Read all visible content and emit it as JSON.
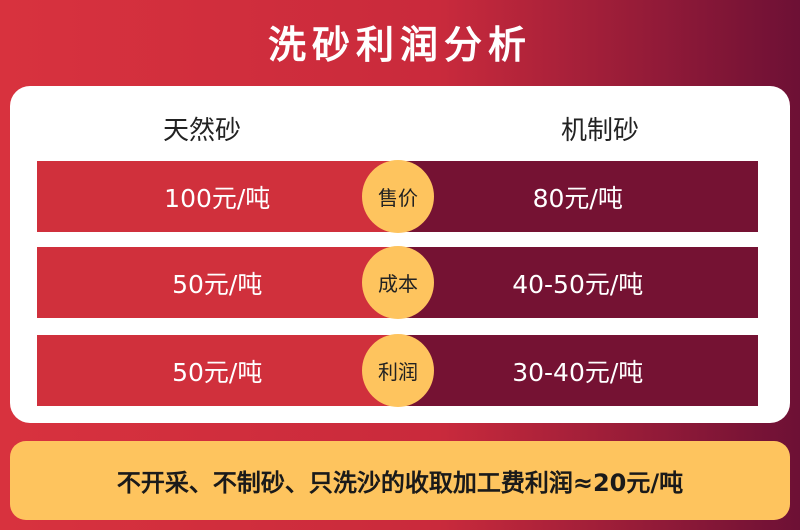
{
  "title": "洗砂利润分析",
  "columns": {
    "left": "天然砂",
    "right": "机制砂"
  },
  "rows": [
    {
      "label": "售价",
      "left": "100元/吨",
      "right": "80元/吨"
    },
    {
      "label": "成本",
      "left": "50元/吨",
      "right": "40-50元/吨"
    },
    {
      "label": "利润",
      "left": "50元/吨",
      "right": "30-40元/吨"
    }
  ],
  "footer": "不开采、不制砂、只洗沙的收取加工费利润≈20元/吨",
  "colors": {
    "left": "#d0303c",
    "right": "#751233",
    "badge": "#fec45e"
  }
}
